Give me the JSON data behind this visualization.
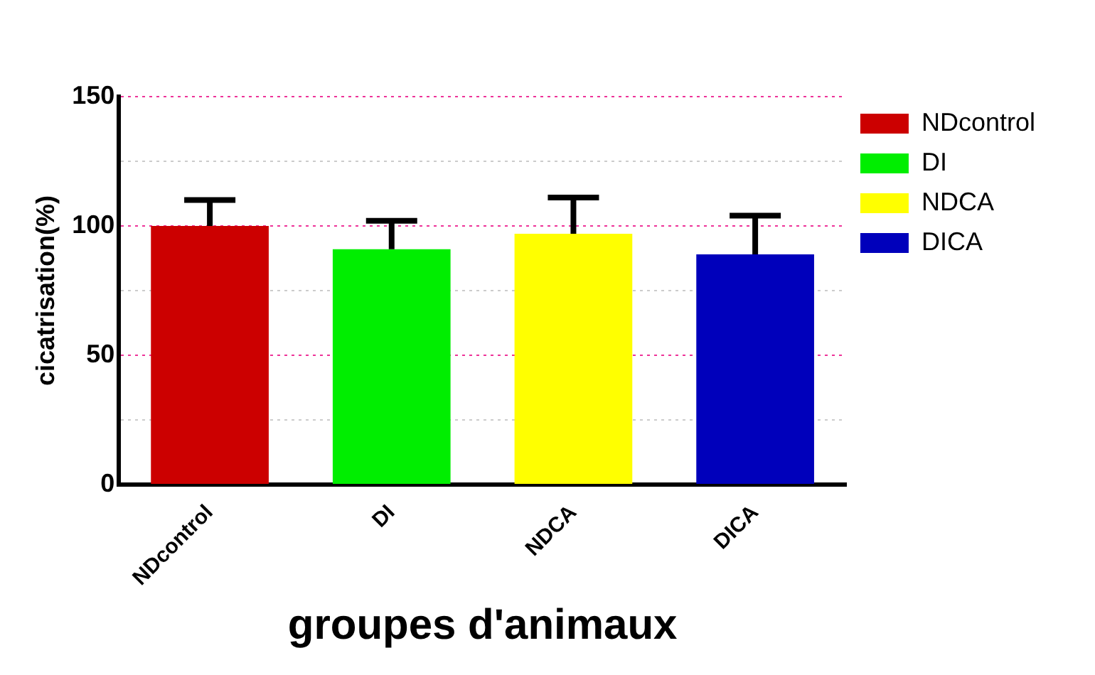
{
  "chart_data": {
    "type": "bar",
    "xlabel": "groupes d'animaux",
    "ylabel": "cicatrisation(%)",
    "categories": [
      "NDcontrol",
      "DI",
      "NDCA",
      "DICA"
    ],
    "series": [
      {
        "name": "NDcontrol",
        "color": "#cc0000",
        "values": [
          100,
          null,
          null,
          null
        ],
        "errors": [
          [
            100,
            110
          ],
          null,
          null,
          null
        ]
      },
      {
        "name": "DI",
        "color": "#00ee00",
        "values": [
          null,
          91,
          null,
          null
        ],
        "errors": [
          null,
          [
            91,
            102
          ],
          null,
          null
        ]
      },
      {
        "name": "NDCA",
        "color": "#ffff00",
        "values": [
          null,
          null,
          97,
          null
        ],
        "errors": [
          null,
          null,
          [
            97,
            111
          ],
          null
        ]
      },
      {
        "name": "DICA",
        "color": "#0000bb",
        "values": [
          null,
          null,
          null,
          89
        ],
        "errors": [
          null,
          null,
          null,
          [
            89,
            104
          ]
        ]
      }
    ],
    "ylim": [
      0,
      150
    ],
    "yticks": [
      0,
      {
        "value": 25,
        "label": null
      },
      50,
      {
        "value": 75,
        "label": null
      },
      100,
      {
        "value": 125,
        "label": null
      },
      150
    ],
    "grid": "y",
    "legend": "right"
  }
}
